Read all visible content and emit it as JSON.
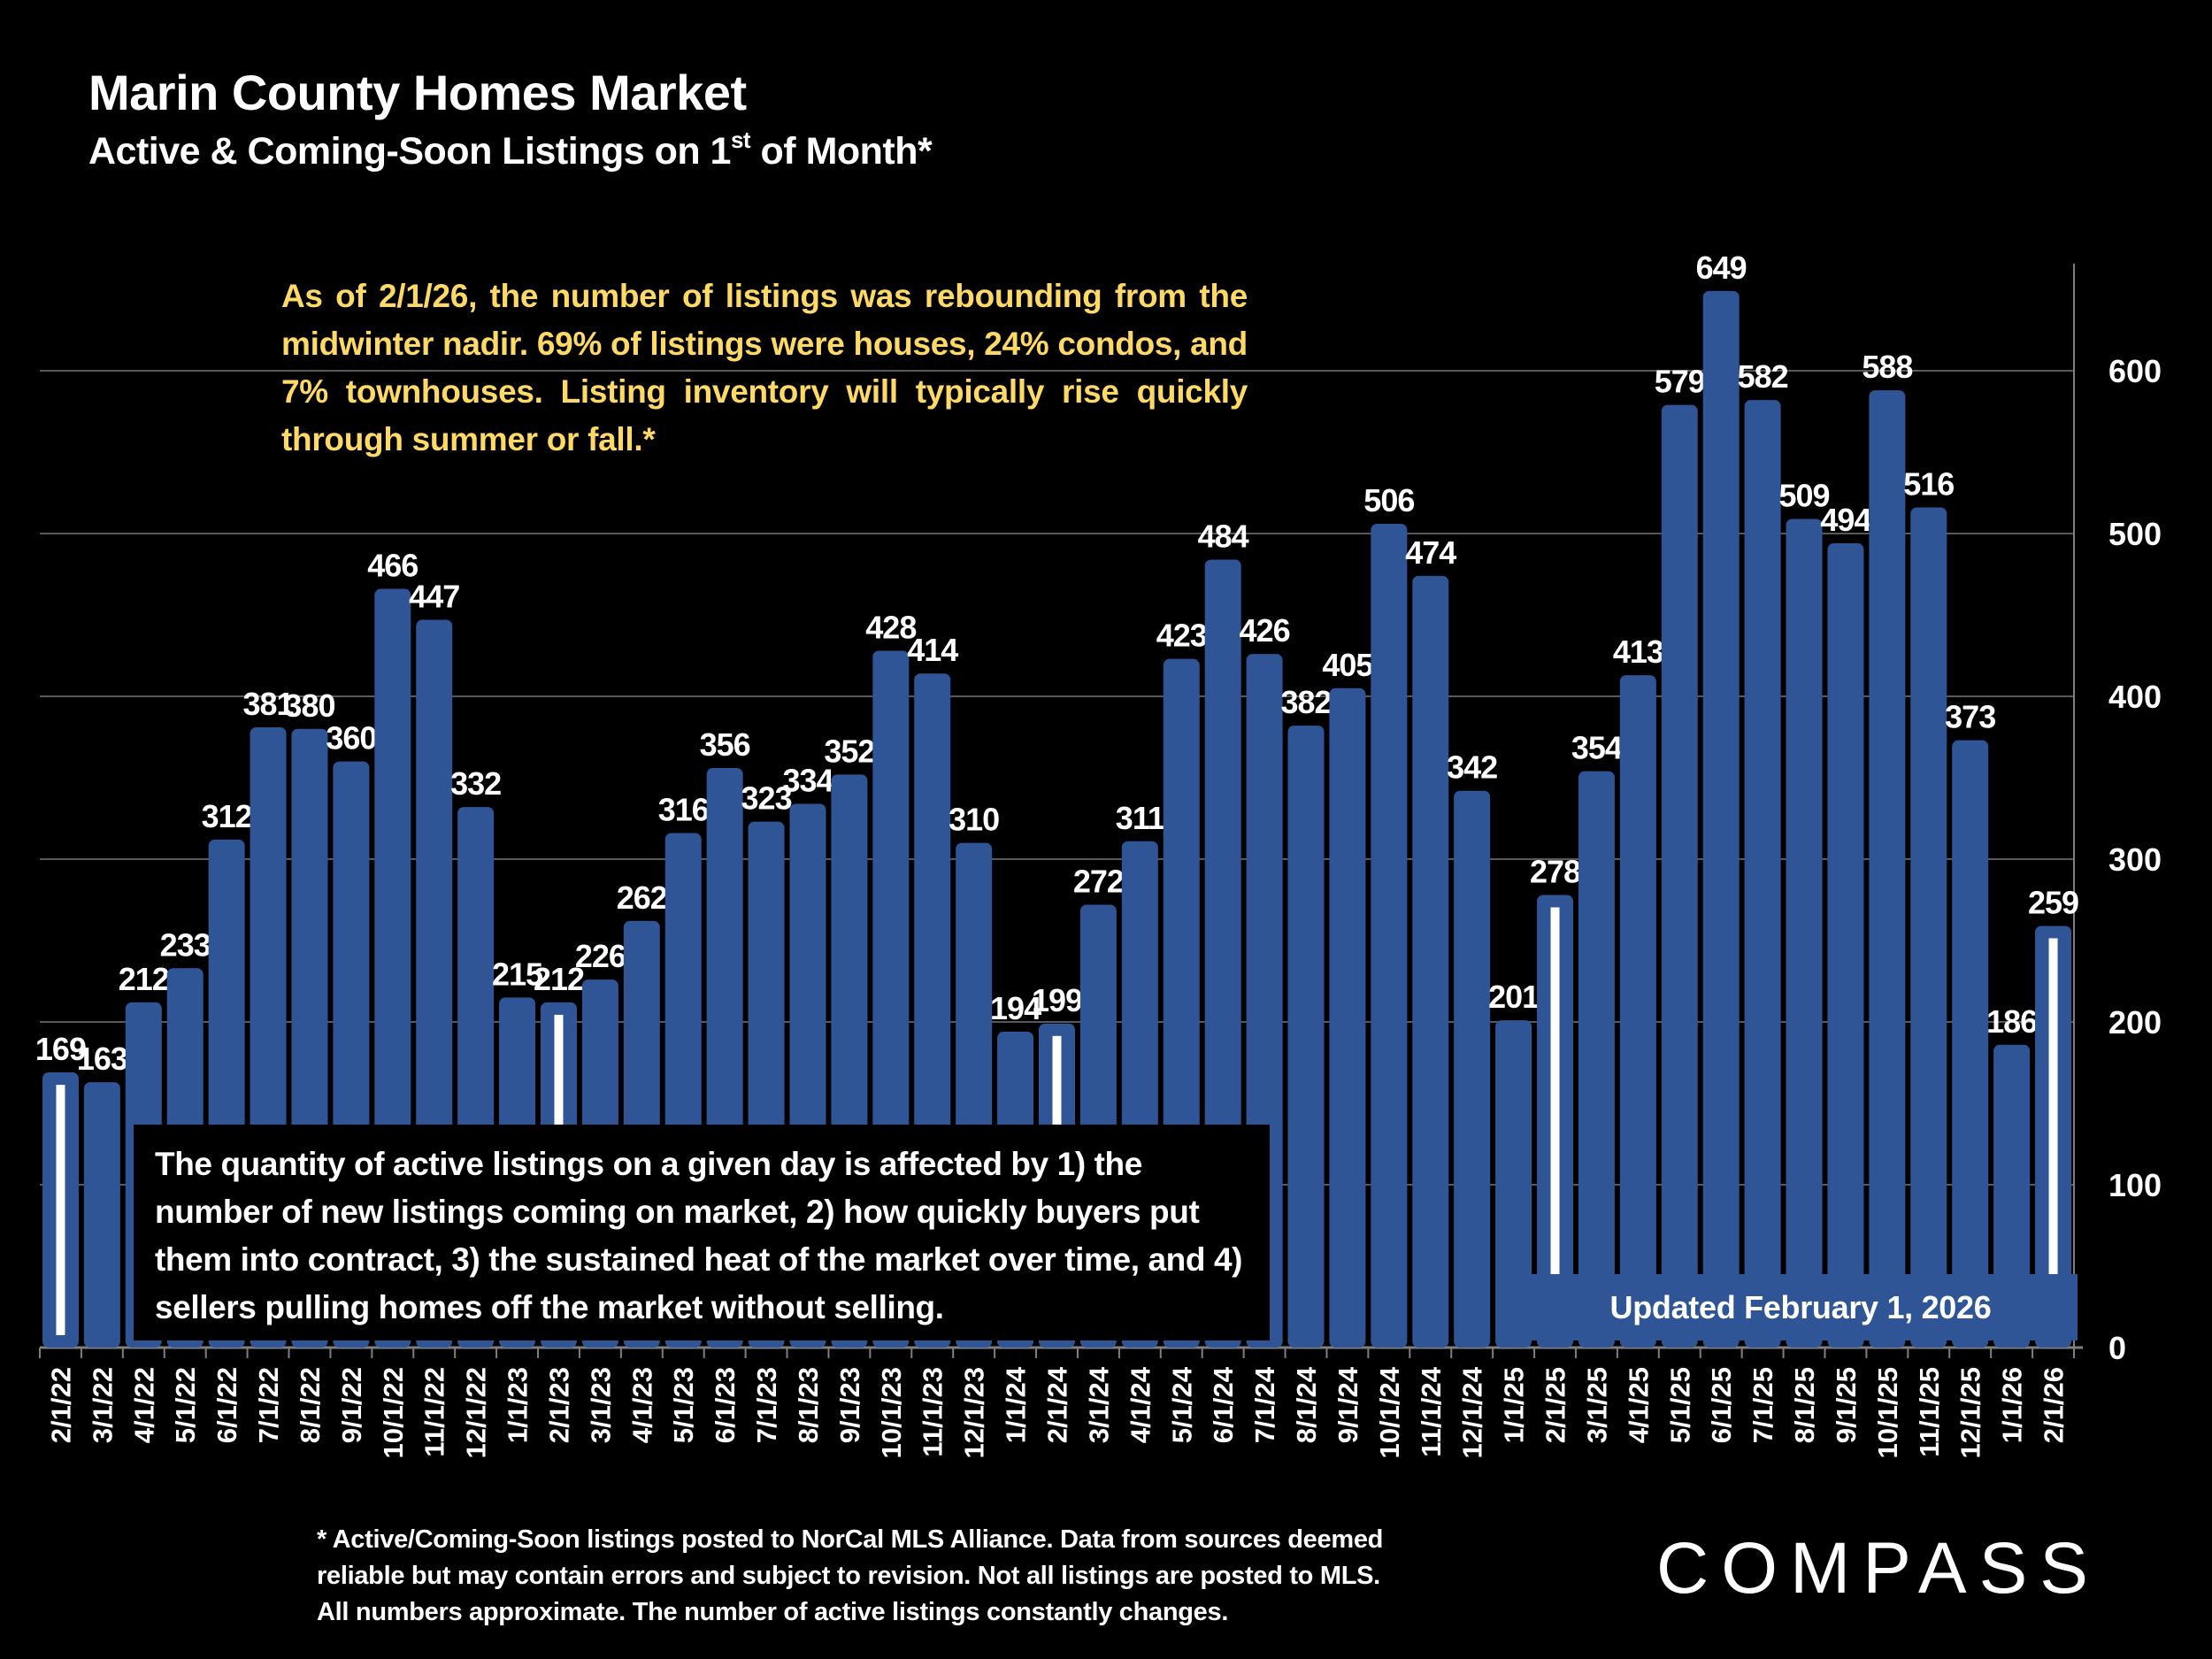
{
  "header": {
    "title": "Marin County Homes Market",
    "subtitle_pre": "Active & Coming-Soon Listings on 1",
    "subtitle_sup": "st",
    "subtitle_post": " of Month*"
  },
  "annotations": {
    "top_note": "As of 2/1/26, the number of listings was rebounding from the midwinter nadir. 69% of listings were houses, 24% condos, and 7% townhouses. Listing inventory will typically rise quickly through summer or fall.*",
    "box_note": "The quantity of active listings on a given day is affected by 1) the number of new listings coming on market, 2) how quickly buyers put them into contract, 3) the sustained heat of the market over time, and 4) sellers pulling homes off the market without selling.",
    "updated": "Updated February 1, 2026"
  },
  "footnote": [
    "* Active/Coming-Soon listings posted to NorCal MLS Alliance.  Data from sources deemed",
    "reliable but may contain errors and subject to revision.  Not all listings are posted to MLS.",
    "All numbers approximate. The number of active listings constantly changes."
  ],
  "logo": "COMPASS",
  "colors": {
    "bar": "#2f5597",
    "highlight_marker": "#ffffff",
    "note_text": "#ffd966",
    "background": "#000000",
    "grid": "#595959"
  },
  "chart_data": {
    "type": "bar",
    "categories": [
      "2/1/22",
      "3/1/22",
      "4/1/22",
      "5/1/22",
      "6/1/22",
      "7/1/22",
      "8/1/22",
      "9/1/22",
      "10/1/22",
      "11/1/22",
      "12/1/22",
      "1/1/23",
      "2/1/23",
      "3/1/23",
      "4/1/23",
      "5/1/23",
      "6/1/23",
      "7/1/23",
      "8/1/23",
      "9/1/23",
      "10/1/23",
      "11/1/23",
      "12/1/23",
      "1/1/24",
      "2/1/24",
      "3/1/24",
      "4/1/24",
      "5/1/24",
      "6/1/24",
      "7/1/24",
      "8/1/24",
      "9/1/24",
      "10/1/24",
      "11/1/24",
      "12/1/24",
      "1/1/25",
      "2/1/25",
      "3/1/25",
      "4/1/25",
      "5/1/25",
      "6/1/25",
      "7/1/25",
      "8/1/25",
      "9/1/25",
      "10/1/25",
      "11/1/25",
      "12/1/25",
      "1/1/26",
      "2/1/26"
    ],
    "values": [
      169,
      163,
      212,
      233,
      312,
      381,
      380,
      360,
      466,
      447,
      332,
      215,
      212,
      226,
      262,
      316,
      356,
      323,
      334,
      352,
      428,
      414,
      310,
      194,
      199,
      272,
      311,
      423,
      484,
      426,
      382,
      405,
      506,
      474,
      342,
      201,
      278,
      354,
      413,
      579,
      649,
      582,
      509,
      494,
      588,
      516,
      373,
      186,
      259
    ],
    "highlighted_categories": [
      "2/1/22",
      "2/1/23",
      "2/1/24",
      "2/1/25",
      "2/1/26"
    ],
    "y_ticks": [
      0,
      100,
      200,
      300,
      400,
      500,
      600
    ],
    "ylim": [
      0,
      660
    ],
    "y_axis_side": "right",
    "grid": true,
    "data_labels": true
  }
}
